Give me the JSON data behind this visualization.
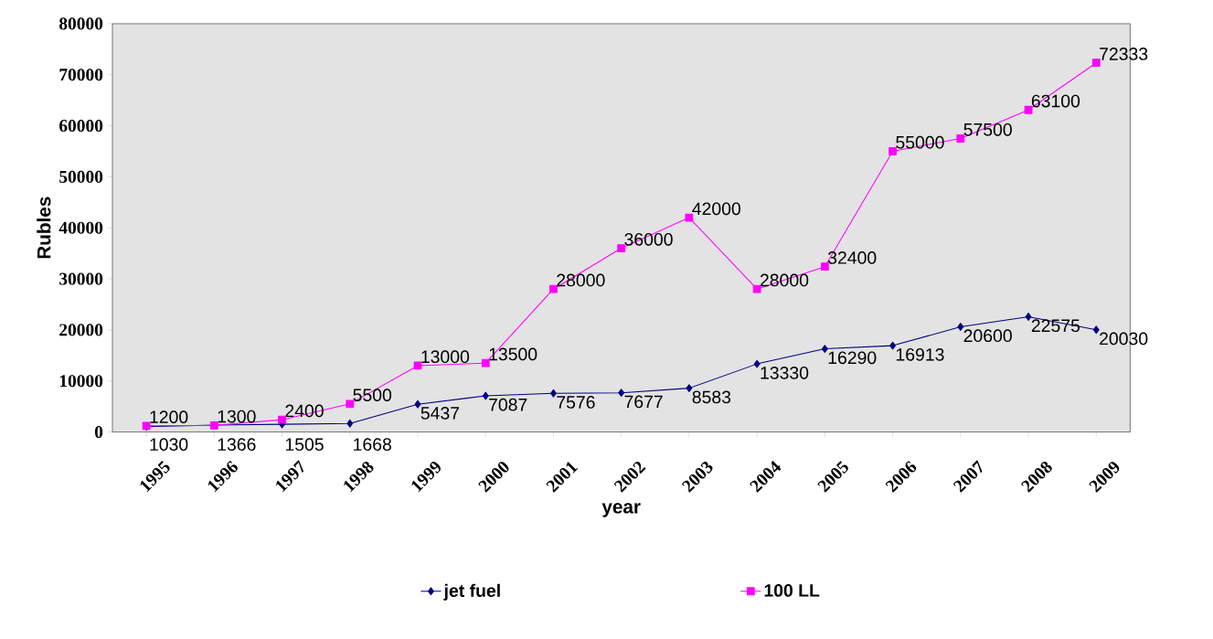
{
  "chart_data": {
    "type": "line",
    "xlabel": "year",
    "ylabel": "Rubles",
    "categories": [
      "1995",
      "1996",
      "1997",
      "1998",
      "1999",
      "2000",
      "2001",
      "2002",
      "2003",
      "2004",
      "2005",
      "2006",
      "2007",
      "2008",
      "2009"
    ],
    "series": [
      {
        "name": "jet fuel",
        "color": "#000080",
        "marker": "diamond",
        "values": [
          1030,
          1366,
          1505,
          1668,
          5437,
          7087,
          7576,
          7677,
          8583,
          13330,
          16290,
          16913,
          20600,
          22575,
          20030
        ]
      },
      {
        "name": "100 LL",
        "color": "#ff00ff",
        "marker": "square",
        "values": [
          1200,
          1300,
          2400,
          5500,
          13000,
          13500,
          28000,
          36000,
          42000,
          28000,
          32400,
          55000,
          57500,
          63100,
          72333
        ]
      }
    ],
    "ylim": [
      0,
      80000
    ],
    "yticks": [
      0,
      10000,
      20000,
      30000,
      40000,
      50000,
      60000,
      70000,
      80000
    ],
    "data_labels": true,
    "legend": "bottom",
    "grid": false
  }
}
